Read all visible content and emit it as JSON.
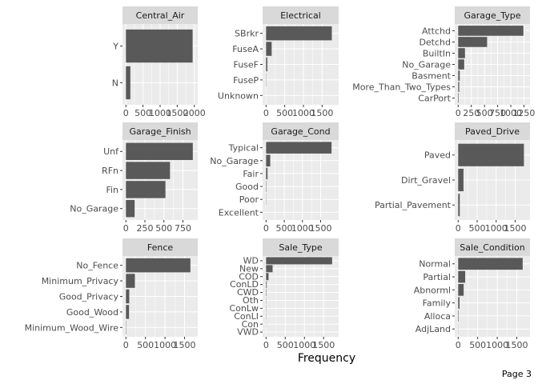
{
  "page": {
    "label": "Page 3"
  },
  "colors": {
    "panel_bg": "#ebebeb",
    "strip_bg": "#d9d9d9",
    "grid": "#ffffff",
    "bar": "#595959"
  },
  "chart_data": {
    "type": "bar",
    "orientation": "horizontal",
    "facet_layout": "3x3",
    "xlabel": "Frequency",
    "panels": [
      {
        "name": "Central_Air",
        "categories": [
          "Y",
          "N"
        ],
        "values": [
          1950,
          130
        ],
        "xlim": [
          0,
          2000
        ],
        "xticks": [
          0,
          500,
          1000,
          1500,
          2000
        ],
        "xtick_labels": [
          "0",
          "500",
          "1000",
          "1500",
          "2000"
        ]
      },
      {
        "name": "Electrical",
        "categories": [
          "SBrkr",
          "FuseA",
          "FuseF",
          "FuseP",
          "Unknown"
        ],
        "values": [
          1760,
          150,
          35,
          6,
          1
        ],
        "xlim": [
          0,
          1850
        ],
        "xticks": [
          0,
          500,
          1000,
          1500
        ],
        "xtick_labels": [
          "0",
          "500",
          "1000",
          "1500"
        ]
      },
      {
        "name": "Garage_Type",
        "categories": [
          "Attchd",
          "Detchd",
          "BuiltIn",
          "No_Garage",
          "Basment",
          "More_Than_Two_Types",
          "CarPort"
        ],
        "values": [
          1240,
          550,
          130,
          115,
          30,
          20,
          10
        ],
        "xlim": [
          0,
          1300
        ],
        "xticks": [
          0,
          250,
          500,
          750,
          1000,
          1250
        ],
        "xtick_labels": [
          "0",
          "250",
          "500",
          "750",
          "1000",
          "1250"
        ]
      },
      {
        "name": "Garage_Finish",
        "categories": [
          "Unf",
          "RFn",
          "Fin",
          "No_Garage"
        ],
        "values": [
          880,
          580,
          520,
          115
        ],
        "xlim": [
          0,
          900
        ],
        "xticks": [
          0,
          250,
          500,
          750
        ],
        "xtick_labels": [
          "0",
          "250",
          "500",
          "750"
        ]
      },
      {
        "name": "Garage_Cond",
        "categories": [
          "Typical",
          "No_Garage",
          "Fair",
          "Good",
          "Poor",
          "Excellent"
        ],
        "values": [
          1800,
          115,
          40,
          10,
          6,
          2
        ],
        "xlim": [
          0,
          1900
        ],
        "xticks": [
          0,
          500,
          1000,
          1500
        ],
        "xtick_labels": [
          "0",
          "500",
          "1000",
          "1500"
        ]
      },
      {
        "name": "Paved_Drive",
        "categories": [
          "Paved",
          "Dirt_Gravel",
          "Partial_Pavement"
        ],
        "values": [
          1730,
          140,
          42
        ],
        "xlim": [
          0,
          1800
        ],
        "xticks": [
          0,
          500,
          1000,
          1500
        ],
        "xtick_labels": [
          "0",
          "500",
          "1000",
          "1500"
        ]
      },
      {
        "name": "Fence",
        "categories": [
          "No_Fence",
          "Minimum_Privacy",
          "Good_Privacy",
          "Good_Wood",
          "Minimum_Wood_Wire"
        ],
        "values": [
          1650,
          230,
          85,
          80,
          8
        ],
        "xlim": [
          0,
          1750
        ],
        "xticks": [
          0,
          500,
          1000,
          1500
        ],
        "xtick_labels": [
          "0",
          "500",
          "1000",
          "1500"
        ]
      },
      {
        "name": "Sale_Type",
        "categories": [
          "WD",
          "New",
          "COD",
          "ConLD",
          "CWD",
          "Oth",
          "ConLw",
          "ConLI",
          "Con",
          "VWD"
        ],
        "values": [
          1720,
          170,
          65,
          17,
          10,
          6,
          6,
          6,
          3,
          1
        ],
        "xlim": [
          0,
          1800
        ],
        "xticks": [
          0,
          500,
          1000,
          1500
        ],
        "xtick_labels": [
          "0",
          "500",
          "1000",
          "1500"
        ]
      },
      {
        "name": "Sale_Condition",
        "categories": [
          "Normal",
          "Partial",
          "Abnorml",
          "Family",
          "Alloca",
          "AdjLand"
        ],
        "values": [
          1650,
          180,
          140,
          35,
          12,
          4
        ],
        "xlim": [
          0,
          1750
        ],
        "xticks": [
          0,
          500,
          1000,
          1500
        ],
        "xtick_labels": [
          "0",
          "500",
          "1000",
          "1500"
        ]
      }
    ]
  }
}
